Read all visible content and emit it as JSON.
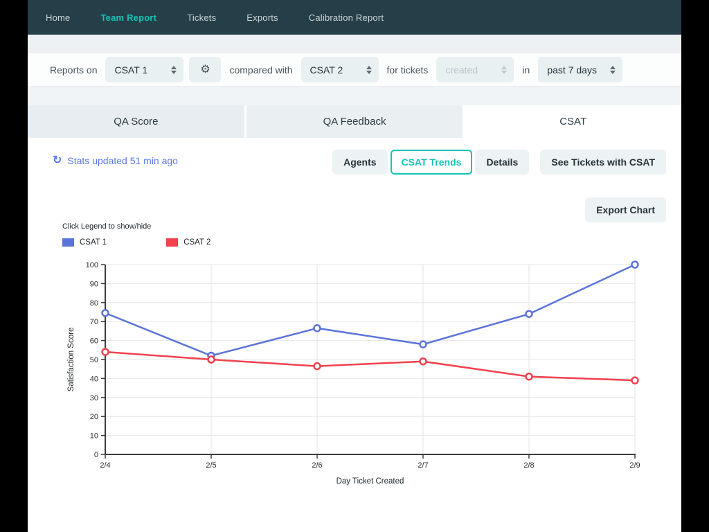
{
  "nav": {
    "items": [
      {
        "label": "Home"
      },
      {
        "label": "Team Report"
      },
      {
        "label": "Tickets"
      },
      {
        "label": "Exports"
      },
      {
        "label": "Calibration Report"
      }
    ],
    "active": "Team Report"
  },
  "filter": {
    "reports_on": "Reports on",
    "metric1": "CSAT 1",
    "compared_with": "compared with",
    "metric2": "CSAT 2",
    "for_tickets": "for tickets",
    "ticket_filter": "created",
    "in": "in",
    "date_range": "past 7 days"
  },
  "tabs": [
    {
      "label": "QA Score"
    },
    {
      "label": "QA Feedback"
    },
    {
      "label": "CSAT"
    }
  ],
  "active_tab": "CSAT",
  "stats": {
    "updated_text": "Stats updated 51 min ago"
  },
  "view_switcher": {
    "agents": "Agents",
    "csat_trends": "CSAT Trends",
    "details": "Details",
    "see_tickets": "See Tickets with CSAT",
    "active": "CSAT Trends"
  },
  "export_chart_label": "Export Chart",
  "legend": {
    "hint": "Click Legend to show/hide"
  },
  "chart_data": {
    "type": "line",
    "categories": [
      "2/4",
      "2/5",
      "2/6",
      "2/7",
      "2/8",
      "2/9"
    ],
    "series": [
      {
        "name": "CSAT 1",
        "color": "#5b74d9",
        "values": [
          74.5,
          52,
          66.5,
          58,
          74,
          100
        ]
      },
      {
        "name": "CSAT 2",
        "color": "#f2414e",
        "values": [
          54,
          50,
          46.5,
          49,
          41,
          39
        ]
      }
    ],
    "title": "",
    "xlabel": "Day Ticket Created",
    "ylabel": "Satisfaction Score",
    "ylim": [
      0,
      100
    ],
    "ytick_step": 10,
    "grid": true,
    "legend_position": "top-left",
    "marker": "open-circle"
  },
  "colors": {
    "accent_teal": "#14c3b6",
    "link_blue": "#5a78e8",
    "nav_bg": "#253f48",
    "grid_line": "#e6e6e6",
    "axis_line": "#3c3c3c"
  }
}
